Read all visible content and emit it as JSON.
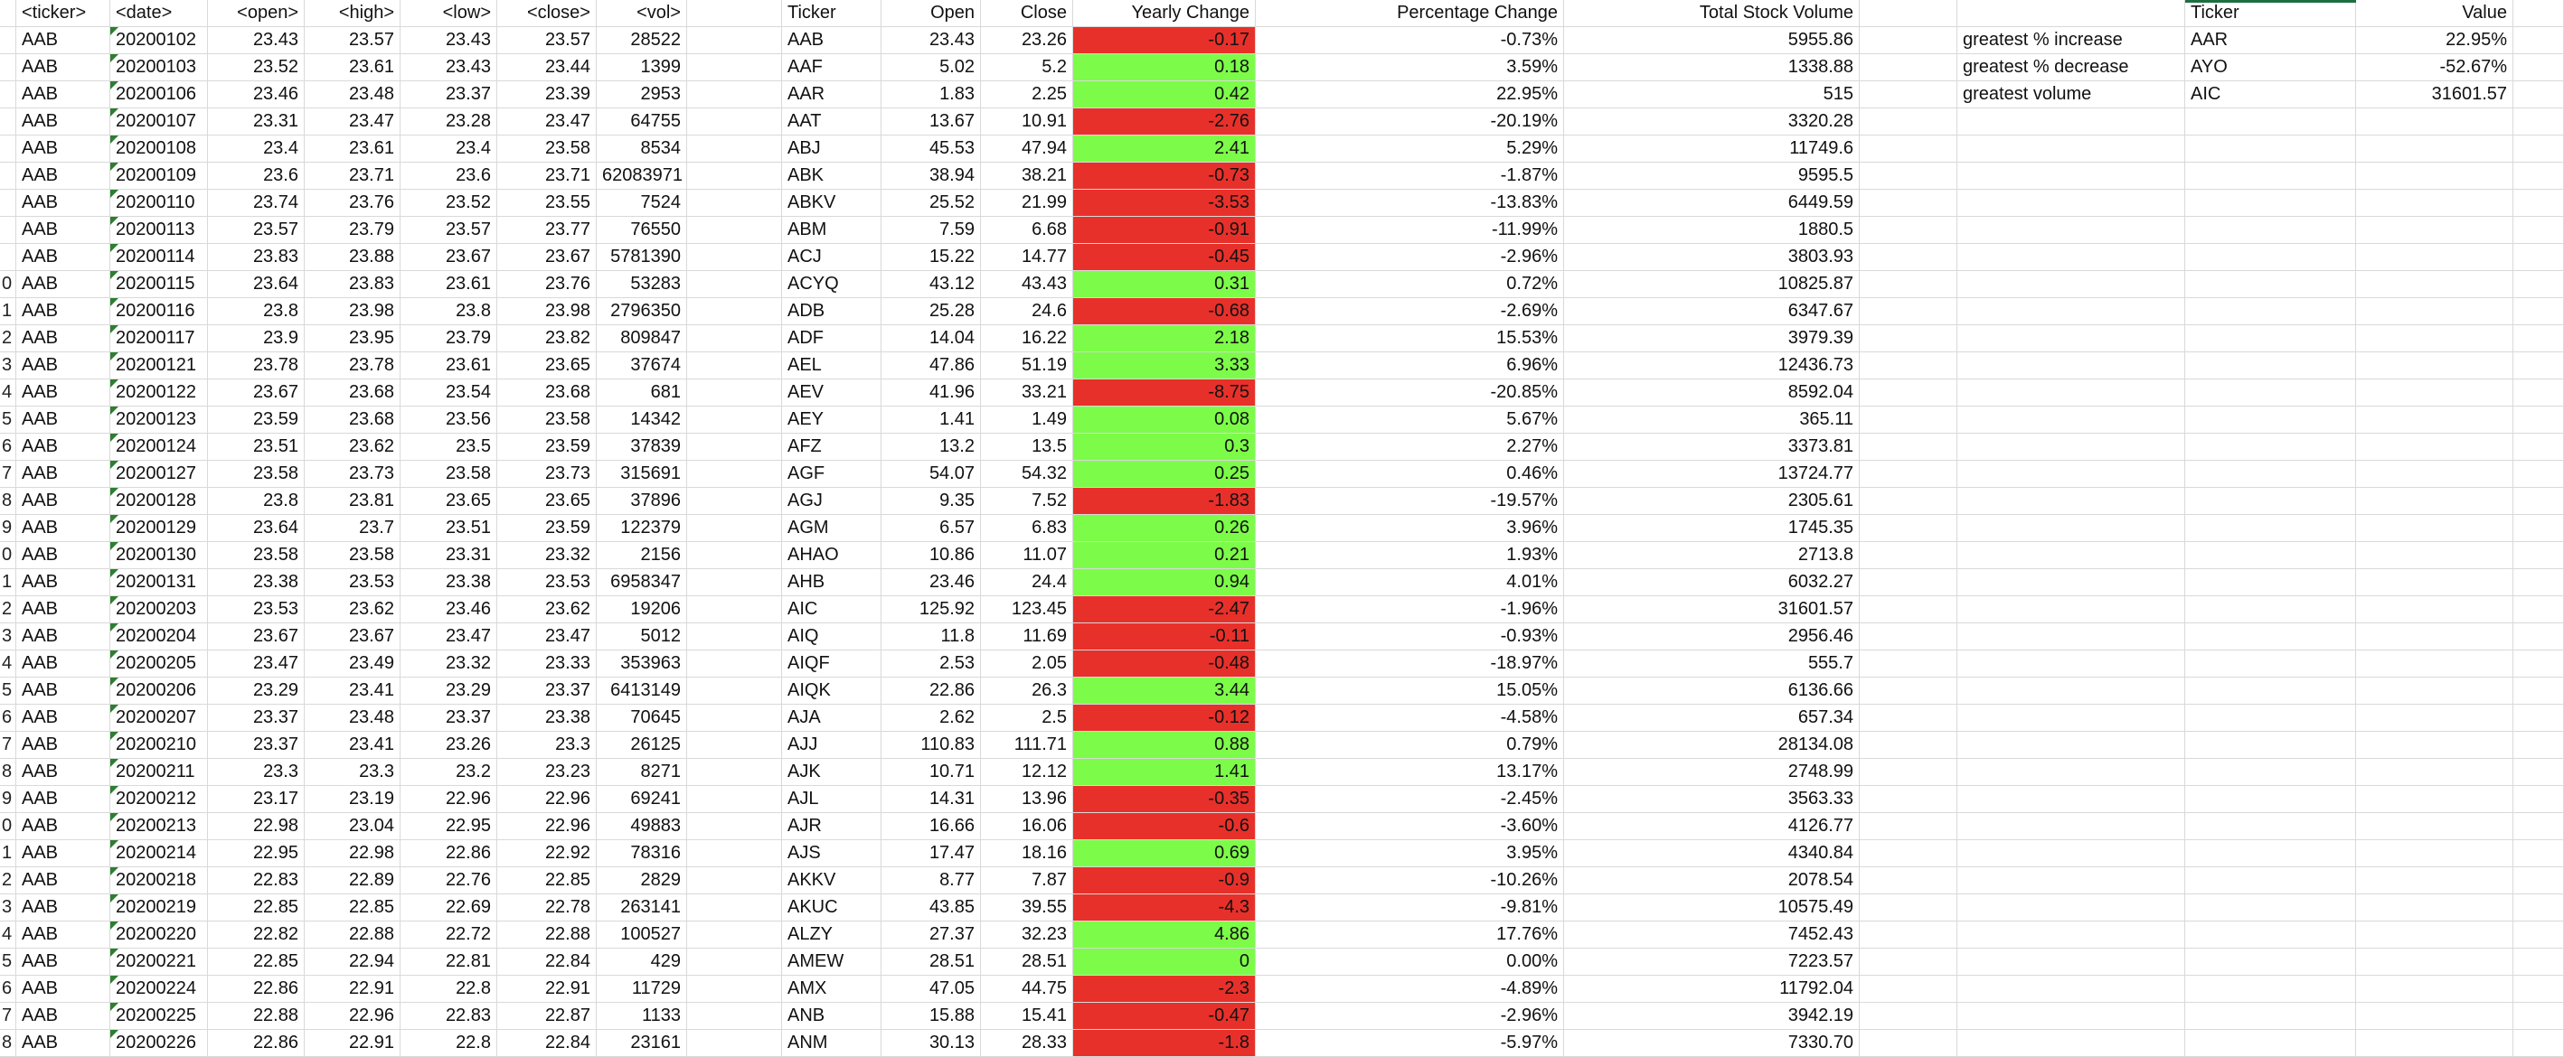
{
  "colors": {
    "negative": "#e8302a",
    "positive": "#7cfc48",
    "grid": "#d9d9d9",
    "warning_triangle": "#2e7d32",
    "selection": "#1d6f42"
  },
  "row_numbers": [
    "",
    "",
    "",
    "",
    "",
    "",
    "",
    "",
    "",
    "0",
    "1",
    "2",
    "3",
    "4",
    "5",
    "6",
    "7",
    "8",
    "9",
    "0",
    "1",
    "2",
    "3",
    "4",
    "5",
    "6",
    "7",
    "8",
    "9",
    "0",
    "1",
    "2",
    "3",
    "4",
    "5",
    "6",
    "7",
    "8"
  ],
  "raw": {
    "headers": [
      "<ticker>",
      "<date>",
      "<open>",
      "<high>",
      "<low>",
      "<close>",
      "<vol>"
    ],
    "rows": [
      [
        "AAB",
        "20200102",
        "23.43",
        "23.57",
        "23.43",
        "23.57",
        "28522"
      ],
      [
        "AAB",
        "20200103",
        "23.52",
        "23.61",
        "23.43",
        "23.44",
        "1399"
      ],
      [
        "AAB",
        "20200106",
        "23.46",
        "23.48",
        "23.37",
        "23.39",
        "2953"
      ],
      [
        "AAB",
        "20200107",
        "23.31",
        "23.47",
        "23.28",
        "23.47",
        "64755"
      ],
      [
        "AAB",
        "20200108",
        "23.4",
        "23.61",
        "23.4",
        "23.58",
        "8534"
      ],
      [
        "AAB",
        "20200109",
        "23.6",
        "23.71",
        "23.6",
        "23.71",
        "62083971"
      ],
      [
        "AAB",
        "20200110",
        "23.74",
        "23.76",
        "23.52",
        "23.55",
        "7524"
      ],
      [
        "AAB",
        "20200113",
        "23.57",
        "23.79",
        "23.57",
        "23.77",
        "76550"
      ],
      [
        "AAB",
        "20200114",
        "23.83",
        "23.88",
        "23.67",
        "23.67",
        "5781390"
      ],
      [
        "AAB",
        "20200115",
        "23.64",
        "23.83",
        "23.61",
        "23.76",
        "53283"
      ],
      [
        "AAB",
        "20200116",
        "23.8",
        "23.98",
        "23.8",
        "23.98",
        "2796350"
      ],
      [
        "AAB",
        "20200117",
        "23.9",
        "23.95",
        "23.79",
        "23.82",
        "809847"
      ],
      [
        "AAB",
        "20200121",
        "23.78",
        "23.78",
        "23.61",
        "23.65",
        "37674"
      ],
      [
        "AAB",
        "20200122",
        "23.67",
        "23.68",
        "23.54",
        "23.68",
        "681"
      ],
      [
        "AAB",
        "20200123",
        "23.59",
        "23.68",
        "23.56",
        "23.58",
        "14342"
      ],
      [
        "AAB",
        "20200124",
        "23.51",
        "23.62",
        "23.5",
        "23.59",
        "37839"
      ],
      [
        "AAB",
        "20200127",
        "23.58",
        "23.73",
        "23.58",
        "23.73",
        "315691"
      ],
      [
        "AAB",
        "20200128",
        "23.8",
        "23.81",
        "23.65",
        "23.65",
        "37896"
      ],
      [
        "AAB",
        "20200129",
        "23.64",
        "23.7",
        "23.51",
        "23.59",
        "122379"
      ],
      [
        "AAB",
        "20200130",
        "23.58",
        "23.58",
        "23.31",
        "23.32",
        "2156"
      ],
      [
        "AAB",
        "20200131",
        "23.38",
        "23.53",
        "23.38",
        "23.53",
        "6958347"
      ],
      [
        "AAB",
        "20200203",
        "23.53",
        "23.62",
        "23.46",
        "23.62",
        "19206"
      ],
      [
        "AAB",
        "20200204",
        "23.67",
        "23.67",
        "23.47",
        "23.47",
        "5012"
      ],
      [
        "AAB",
        "20200205",
        "23.47",
        "23.49",
        "23.32",
        "23.33",
        "353963"
      ],
      [
        "AAB",
        "20200206",
        "23.29",
        "23.41",
        "23.29",
        "23.37",
        "6413149"
      ],
      [
        "AAB",
        "20200207",
        "23.37",
        "23.48",
        "23.37",
        "23.38",
        "70645"
      ],
      [
        "AAB",
        "20200210",
        "23.37",
        "23.41",
        "23.26",
        "23.3",
        "26125"
      ],
      [
        "AAB",
        "20200211",
        "23.3",
        "23.3",
        "23.2",
        "23.23",
        "8271"
      ],
      [
        "AAB",
        "20200212",
        "23.17",
        "23.19",
        "22.96",
        "22.96",
        "69241"
      ],
      [
        "AAB",
        "20200213",
        "22.98",
        "23.04",
        "22.95",
        "22.96",
        "49883"
      ],
      [
        "AAB",
        "20200214",
        "22.95",
        "22.98",
        "22.86",
        "22.92",
        "78316"
      ],
      [
        "AAB",
        "20200218",
        "22.83",
        "22.89",
        "22.76",
        "22.85",
        "2829"
      ],
      [
        "AAB",
        "20200219",
        "22.85",
        "22.85",
        "22.69",
        "22.78",
        "263141"
      ],
      [
        "AAB",
        "20200220",
        "22.82",
        "22.88",
        "22.72",
        "22.88",
        "100527"
      ],
      [
        "AAB",
        "20200221",
        "22.85",
        "22.94",
        "22.81",
        "22.84",
        "429"
      ],
      [
        "AAB",
        "20200224",
        "22.86",
        "22.91",
        "22.8",
        "22.91",
        "11729"
      ],
      [
        "AAB",
        "20200225",
        "22.88",
        "22.96",
        "22.83",
        "22.87",
        "1133"
      ],
      [
        "AAB",
        "20200226",
        "22.86",
        "22.91",
        "22.8",
        "22.84",
        "23161"
      ]
    ]
  },
  "summary": {
    "headers": [
      "Ticker",
      "Open",
      "Close",
      "Yearly Change",
      "Percentage Change",
      "Total Stock Volume"
    ],
    "rows": [
      [
        "AAB",
        "23.43",
        "23.26",
        "-0.17",
        "-0.73%",
        "5955.86"
      ],
      [
        "AAF",
        "5.02",
        "5.2",
        "0.18",
        "3.59%",
        "1338.88"
      ],
      [
        "AAR",
        "1.83",
        "2.25",
        "0.42",
        "22.95%",
        "515"
      ],
      [
        "AAT",
        "13.67",
        "10.91",
        "-2.76",
        "-20.19%",
        "3320.28"
      ],
      [
        "ABJ",
        "45.53",
        "47.94",
        "2.41",
        "5.29%",
        "11749.6"
      ],
      [
        "ABK",
        "38.94",
        "38.21",
        "-0.73",
        "-1.87%",
        "9595.5"
      ],
      [
        "ABKV",
        "25.52",
        "21.99",
        "-3.53",
        "-13.83%",
        "6449.59"
      ],
      [
        "ABM",
        "7.59",
        "6.68",
        "-0.91",
        "-11.99%",
        "1880.5"
      ],
      [
        "ACJ",
        "15.22",
        "14.77",
        "-0.45",
        "-2.96%",
        "3803.93"
      ],
      [
        "ACYQ",
        "43.12",
        "43.43",
        "0.31",
        "0.72%",
        "10825.87"
      ],
      [
        "ADB",
        "25.28",
        "24.6",
        "-0.68",
        "-2.69%",
        "6347.67"
      ],
      [
        "ADF",
        "14.04",
        "16.22",
        "2.18",
        "15.53%",
        "3979.39"
      ],
      [
        "AEL",
        "47.86",
        "51.19",
        "3.33",
        "6.96%",
        "12436.73"
      ],
      [
        "AEV",
        "41.96",
        "33.21",
        "-8.75",
        "-20.85%",
        "8592.04"
      ],
      [
        "AEY",
        "1.41",
        "1.49",
        "0.08",
        "5.67%",
        "365.11"
      ],
      [
        "AFZ",
        "13.2",
        "13.5",
        "0.3",
        "2.27%",
        "3373.81"
      ],
      [
        "AGF",
        "54.07",
        "54.32",
        "0.25",
        "0.46%",
        "13724.77"
      ],
      [
        "AGJ",
        "9.35",
        "7.52",
        "-1.83",
        "-19.57%",
        "2305.61"
      ],
      [
        "AGM",
        "6.57",
        "6.83",
        "0.26",
        "3.96%",
        "1745.35"
      ],
      [
        "AHAO",
        "10.86",
        "11.07",
        "0.21",
        "1.93%",
        "2713.8"
      ],
      [
        "AHB",
        "23.46",
        "24.4",
        "0.94",
        "4.01%",
        "6032.27"
      ],
      [
        "AIC",
        "125.92",
        "123.45",
        "-2.47",
        "-1.96%",
        "31601.57"
      ],
      [
        "AIQ",
        "11.8",
        "11.69",
        "-0.11",
        "-0.93%",
        "2956.46"
      ],
      [
        "AIQF",
        "2.53",
        "2.05",
        "-0.48",
        "-18.97%",
        "555.7"
      ],
      [
        "AIQK",
        "22.86",
        "26.3",
        "3.44",
        "15.05%",
        "6136.66"
      ],
      [
        "AJA",
        "2.62",
        "2.5",
        "-0.12",
        "-4.58%",
        "657.34"
      ],
      [
        "AJJ",
        "110.83",
        "111.71",
        "0.88",
        "0.79%",
        "28134.08"
      ],
      [
        "AJK",
        "10.71",
        "12.12",
        "1.41",
        "13.17%",
        "2748.99"
      ],
      [
        "AJL",
        "14.31",
        "13.96",
        "-0.35",
        "-2.45%",
        "3563.33"
      ],
      [
        "AJR",
        "16.66",
        "16.06",
        "-0.6",
        "-3.60%",
        "4126.77"
      ],
      [
        "AJS",
        "17.47",
        "18.16",
        "0.69",
        "3.95%",
        "4340.84"
      ],
      [
        "AKKV",
        "8.77",
        "7.87",
        "-0.9",
        "-10.26%",
        "2078.54"
      ],
      [
        "AKUC",
        "43.85",
        "39.55",
        "-4.3",
        "-9.81%",
        "10575.49"
      ],
      [
        "ALZY",
        "27.37",
        "32.23",
        "4.86",
        "17.76%",
        "7452.43"
      ],
      [
        "AMEW",
        "28.51",
        "28.51",
        "0",
        "0.00%",
        "7223.57"
      ],
      [
        "AMX",
        "47.05",
        "44.75",
        "-2.3",
        "-4.89%",
        "11792.04"
      ],
      [
        "ANB",
        "15.88",
        "15.41",
        "-0.47",
        "-2.96%",
        "3942.19"
      ],
      [
        "ANM",
        "30.13",
        "28.33",
        "-1.8",
        "-5.97%",
        "7330.70"
      ]
    ]
  },
  "greatest": {
    "headers": [
      "Ticker",
      "Value"
    ],
    "rows": [
      [
        "greatest % increase",
        "AAR",
        "22.95%"
      ],
      [
        " greatest % decrease",
        "AYO",
        "-52.67%"
      ],
      [
        "greatest volume",
        "AIC",
        "31601.57"
      ]
    ]
  }
}
